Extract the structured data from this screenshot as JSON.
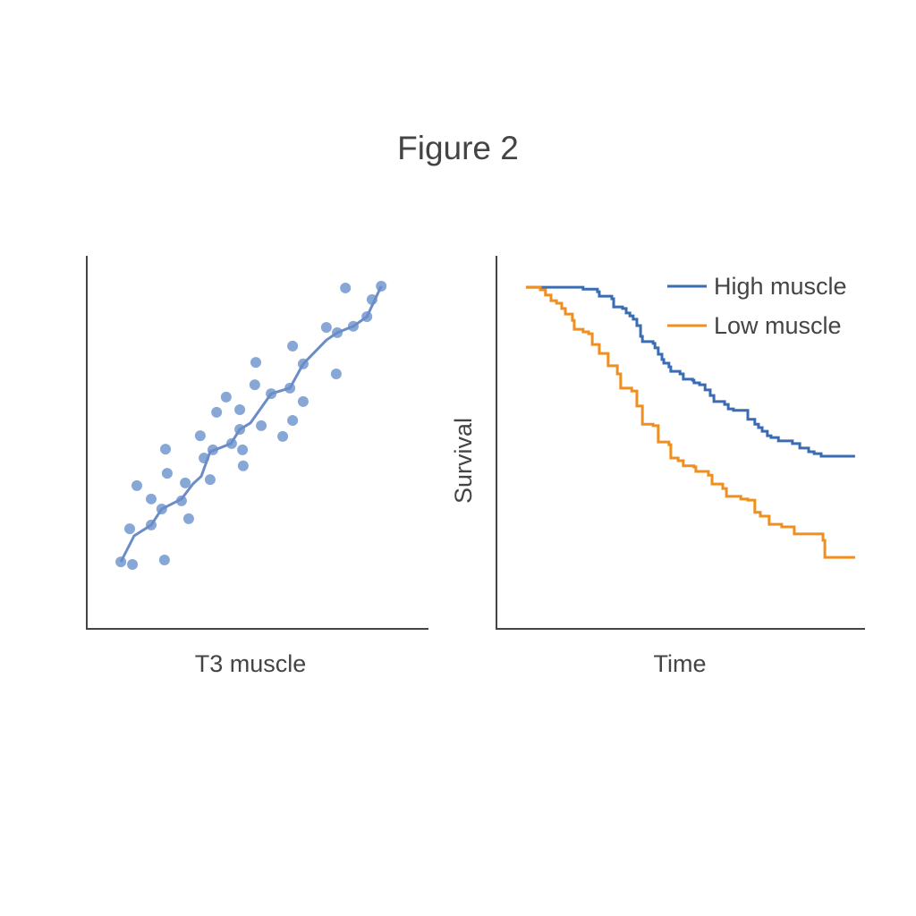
{
  "title": "Figure 2",
  "colors": {
    "axis": "#444444",
    "scatter": "#7a9dd3",
    "trend": "#6b8cc7",
    "high": "#3a6cb4",
    "low": "#ee8f1f"
  },
  "chart_data": [
    {
      "type": "scatter",
      "xlabel": "T3 muscle",
      "ylabel": "",
      "xlim": [
        0,
        100
      ],
      "ylim": [
        0,
        100
      ],
      "grid": false,
      "points": [
        [
          10.0,
          18.0
        ],
        [
          13.4,
          17.3
        ],
        [
          22.8,
          18.5
        ],
        [
          12.6,
          26.9
        ],
        [
          18.9,
          27.9
        ],
        [
          14.7,
          38.5
        ],
        [
          18.9,
          34.9
        ],
        [
          22.0,
          32.2
        ],
        [
          23.6,
          41.8
        ],
        [
          23.1,
          48.3
        ],
        [
          27.8,
          34.4
        ],
        [
          29.9,
          29.6
        ],
        [
          28.9,
          39.2
        ],
        [
          33.3,
          51.9
        ],
        [
          34.4,
          45.9
        ],
        [
          36.2,
          40.1
        ],
        [
          37.0,
          48.1
        ],
        [
          38.1,
          58.2
        ],
        [
          40.9,
          62.3
        ],
        [
          42.5,
          49.8
        ],
        [
          44.9,
          58.9
        ],
        [
          44.9,
          53.6
        ],
        [
          45.7,
          48.1
        ],
        [
          45.9,
          43.8
        ],
        [
          49.3,
          65.6
        ],
        [
          49.6,
          71.6
        ],
        [
          51.2,
          54.6
        ],
        [
          54.1,
          63.2
        ],
        [
          57.5,
          51.7
        ],
        [
          59.6,
          64.7
        ],
        [
          60.4,
          56.0
        ],
        [
          60.4,
          76.0
        ],
        [
          63.5,
          61.1
        ],
        [
          63.5,
          71.2
        ],
        [
          70.3,
          81.0
        ],
        [
          73.2,
          68.5
        ],
        [
          73.5,
          79.6
        ],
        [
          75.9,
          91.6
        ],
        [
          78.2,
          81.3
        ],
        [
          82.2,
          83.9
        ],
        [
          83.7,
          88.5
        ],
        [
          86.4,
          92.1
        ]
      ],
      "trend": [
        [
          10,
          18
        ],
        [
          13.9,
          25
        ],
        [
          18.9,
          27.9
        ],
        [
          22,
          32.2
        ],
        [
          27.8,
          34.9
        ],
        [
          31.2,
          39
        ],
        [
          33.6,
          41
        ],
        [
          36.2,
          47.6
        ],
        [
          42.3,
          49.8
        ],
        [
          44.9,
          53.6
        ],
        [
          48,
          55.3
        ],
        [
          54.1,
          63.2
        ],
        [
          59.6,
          64.7
        ],
        [
          63.5,
          71.2
        ],
        [
          70.3,
          77.6
        ],
        [
          73.5,
          79.6
        ],
        [
          78.2,
          81.3
        ],
        [
          82.2,
          83.9
        ],
        [
          86.4,
          92.1
        ]
      ]
    },
    {
      "type": "line",
      "subtype": "step",
      "xlabel": "Time",
      "ylabel": "Survival",
      "xlim": [
        0,
        100
      ],
      "ylim": [
        0,
        1
      ],
      "grid": false,
      "legend": "top-right",
      "end_time": 97.3,
      "series": [
        {
          "name": "High muscle",
          "color": "#3a6cb4",
          "steps": [
            [
              8.0,
              0.918
            ],
            [
              23.5,
              0.913
            ],
            [
              27.4,
              0.906
            ],
            [
              27.9,
              0.894
            ],
            [
              31.3,
              0.887
            ],
            [
              31.8,
              0.865
            ],
            [
              34.2,
              0.861
            ],
            [
              35.2,
              0.849
            ],
            [
              36.2,
              0.841
            ],
            [
              37.1,
              0.832
            ],
            [
              38.1,
              0.815
            ],
            [
              39.1,
              0.786
            ],
            [
              39.6,
              0.772
            ],
            [
              42.5,
              0.767
            ],
            [
              43.0,
              0.755
            ],
            [
              43.9,
              0.738
            ],
            [
              44.9,
              0.724
            ],
            [
              45.4,
              0.714
            ],
            [
              46.8,
              0.704
            ],
            [
              47.3,
              0.692
            ],
            [
              49.8,
              0.685
            ],
            [
              50.7,
              0.671
            ],
            [
              53.2,
              0.668
            ],
            [
              53.6,
              0.661
            ],
            [
              55.1,
              0.656
            ],
            [
              56.6,
              0.642
            ],
            [
              58.0,
              0.627
            ],
            [
              59.0,
              0.611
            ],
            [
              61.9,
              0.603
            ],
            [
              62.9,
              0.591
            ],
            [
              64.3,
              0.587
            ],
            [
              68.2,
              0.563
            ],
            [
              70.1,
              0.55
            ],
            [
              71.1,
              0.541
            ],
            [
              72.1,
              0.531
            ],
            [
              73.5,
              0.519
            ],
            [
              74.5,
              0.514
            ],
            [
              76.5,
              0.505
            ],
            [
              80.3,
              0.498
            ],
            [
              82.3,
              0.486
            ],
            [
              84.7,
              0.476
            ],
            [
              86.2,
              0.471
            ],
            [
              88.1,
              0.464
            ]
          ]
        },
        {
          "name": "Low muscle",
          "color": "#ee8f1f",
          "steps": [
            [
              8.0,
              0.918
            ],
            [
              11.9,
              0.911
            ],
            [
              13.3,
              0.897
            ],
            [
              14.8,
              0.882
            ],
            [
              16.3,
              0.875
            ],
            [
              17.7,
              0.861
            ],
            [
              18.7,
              0.846
            ],
            [
              20.6,
              0.829
            ],
            [
              21.1,
              0.805
            ],
            [
              23.5,
              0.798
            ],
            [
              25.0,
              0.793
            ],
            [
              26.0,
              0.764
            ],
            [
              27.9,
              0.74
            ],
            [
              30.3,
              0.707
            ],
            [
              32.8,
              0.685
            ],
            [
              33.7,
              0.647
            ],
            [
              36.7,
              0.639
            ],
            [
              38.1,
              0.599
            ],
            [
              39.6,
              0.55
            ],
            [
              42.5,
              0.546
            ],
            [
              43.9,
              0.502
            ],
            [
              46.8,
              0.495
            ],
            [
              47.3,
              0.459
            ],
            [
              49.3,
              0.452
            ],
            [
              50.7,
              0.438
            ],
            [
              53.6,
              0.435
            ],
            [
              54.1,
              0.423
            ],
            [
              57.5,
              0.413
            ],
            [
              58.5,
              0.389
            ],
            [
              61.4,
              0.377
            ],
            [
              62.4,
              0.356
            ],
            [
              66.3,
              0.349
            ],
            [
              68.2,
              0.346
            ],
            [
              70.1,
              0.313
            ],
            [
              71.6,
              0.303
            ],
            [
              74.0,
              0.281
            ],
            [
              77.4,
              0.274
            ],
            [
              80.8,
              0.255
            ],
            [
              88.6,
              0.238
            ],
            [
              89.1,
              0.192
            ]
          ]
        }
      ]
    }
  ]
}
